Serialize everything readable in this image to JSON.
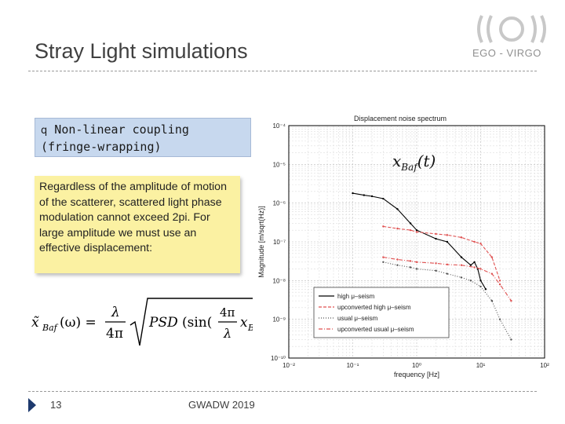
{
  "slide": {
    "title": "Stray Light simulations",
    "org": "EGO - VIRGO",
    "bullet_box": {
      "bullet": "q",
      "text_line1": "Non-linear coupling",
      "text_line2": "(fringe-wrapping)"
    },
    "note": "Regardless of the amplitude of motion of the scatterer, scattered light phase modulation cannot exceed 2pi. For large amplitude we must use an effective displacement:",
    "footer": {
      "page": "13",
      "conference": "GWADW 2019"
    },
    "colors": {
      "title": "#404040",
      "blue_box": "#c7d8ee",
      "yellow_box": "#fbf1a2",
      "footer_arrow": "#1e3a6e"
    }
  },
  "chart_data": {
    "type": "line",
    "title": "Displacement noise spectrum",
    "xlabel": "frequency [Hz]",
    "ylabel": "Magnitude [m/sqrt(Hz)]",
    "x_scale": "log",
    "y_scale": "log",
    "xlim": [
      0.01,
      100
    ],
    "ylim": [
      1e-10,
      0.0001
    ],
    "x_ticks": [
      "10⁻²",
      "10⁻¹",
      "10⁰",
      "10¹",
      "10²"
    ],
    "y_ticks": [
      "10⁻⁴",
      "10⁻⁵",
      "10⁻⁶",
      "10⁻⁷",
      "10⁻⁸",
      "10⁻⁹",
      "10⁻¹⁰"
    ],
    "grid": true,
    "inset_label": "xBaf(t)",
    "legend_position": "lower-right",
    "legend": [
      {
        "label": "high μ–seism",
        "style": "solid",
        "color": "#000000"
      },
      {
        "label": "upconverted high μ–seism",
        "style": "dashed",
        "color": "#e05050"
      },
      {
        "label": "usual μ–seism",
        "style": "dotted",
        "color": "#555555"
      },
      {
        "label": "upconverted usual μ–seism",
        "style": "dashdot",
        "color": "#e05050"
      }
    ],
    "series": [
      {
        "x": [
          0.1,
          0.15,
          0.2,
          0.3,
          0.5,
          0.8,
          1,
          2,
          3,
          5,
          7,
          8,
          9,
          10,
          12
        ],
        "y": [
          1.8e-06,
          1.6e-06,
          1.5e-06,
          1.3e-06,
          7e-07,
          3e-07,
          2e-07,
          1.2e-07,
          1e-07,
          4e-08,
          2.5e-08,
          3e-08,
          2e-08,
          1e-08,
          6e-09
        ]
      },
      {
        "x": [
          0.3,
          0.5,
          0.8,
          1,
          2,
          3,
          5,
          8,
          10,
          15,
          20
        ],
        "y": [
          2.5e-07,
          2.2e-07,
          2e-07,
          1.8e-07,
          1.6e-07,
          1.5e-07,
          1.3e-07,
          1e-07,
          9e-08,
          4e-08,
          1e-08
        ]
      },
      {
        "x": [
          0.3,
          0.5,
          0.8,
          1,
          2,
          3,
          5,
          7,
          10,
          15,
          20,
          30
        ],
        "y": [
          3e-08,
          2.5e-08,
          2.2e-08,
          2e-08,
          1.8e-08,
          1.5e-08,
          1.2e-08,
          1e-08,
          7e-09,
          3e-09,
          1e-09,
          3e-10
        ]
      },
      {
        "x": [
          0.3,
          0.5,
          0.8,
          1,
          2,
          3,
          5,
          8,
          10,
          15,
          20,
          30
        ],
        "y": [
          4e-08,
          3.5e-08,
          3.2e-08,
          3e-08,
          2.8e-08,
          2.6e-08,
          2.5e-08,
          2.2e-08,
          2e-08,
          1.5e-08,
          8e-09,
          3e-09
        ]
      }
    ]
  }
}
